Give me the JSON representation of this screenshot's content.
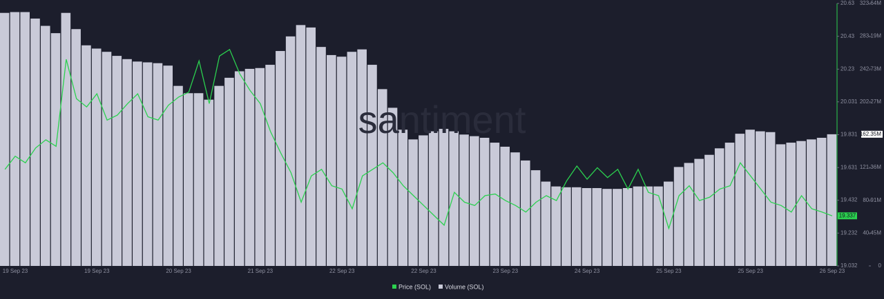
{
  "chart_data": {
    "type": "bar-line",
    "watermark": "santiment",
    "categories": [
      null,
      "19 Sep 23",
      null,
      null,
      null,
      null,
      null,
      null,
      null,
      "19 Sep 23",
      null,
      null,
      null,
      null,
      null,
      null,
      null,
      "20 Sep 23",
      null,
      null,
      null,
      null,
      null,
      null,
      null,
      "21 Sep 23",
      null,
      null,
      null,
      null,
      null,
      null,
      null,
      "22 Sep 23",
      null,
      null,
      null,
      null,
      null,
      null,
      null,
      "22 Sep 23",
      null,
      null,
      null,
      null,
      null,
      null,
      null,
      "23 Sep 23",
      null,
      null,
      null,
      null,
      null,
      null,
      null,
      "24 Sep 23",
      null,
      null,
      null,
      null,
      null,
      null,
      null,
      "25 Sep 23",
      null,
      null,
      null,
      null,
      null,
      null,
      null,
      "25 Sep 23",
      null,
      null,
      null,
      null,
      null,
      null,
      null,
      "26 Sep 23"
    ],
    "series": [
      {
        "name": "Price (SOL)",
        "color": "#2bd14f",
        "type": "line",
        "values": [
          19.62,
          19.7,
          19.66,
          19.75,
          19.8,
          19.76,
          20.29,
          20.05,
          20.0,
          20.08,
          19.92,
          19.95,
          20.02,
          20.08,
          19.94,
          19.92,
          20.01,
          20.06,
          20.09,
          20.28,
          20.02,
          20.31,
          20.35,
          20.2,
          20.1,
          20.02,
          19.85,
          19.72,
          19.6,
          19.42,
          19.58,
          19.62,
          19.52,
          19.5,
          19.38,
          19.58,
          19.62,
          19.66,
          19.6,
          19.52,
          19.46,
          19.4,
          19.34,
          19.28,
          19.48,
          19.42,
          19.4,
          19.46,
          19.47,
          19.43,
          19.4,
          19.36,
          19.42,
          19.46,
          19.43,
          19.55,
          19.64,
          19.56,
          19.63,
          19.57,
          19.62,
          19.5,
          19.62,
          19.48,
          19.46,
          19.26,
          19.46,
          19.52,
          19.43,
          19.45,
          19.5,
          19.52,
          19.66,
          19.58,
          19.5,
          19.42,
          19.4,
          19.36,
          19.46,
          19.38,
          19.36,
          19.337
        ]
      },
      {
        "name": "Volume (SOL)",
        "color": "#c9cad8",
        "type": "bar",
        "axis": "y2",
        "values": [
          312000000,
          313000000,
          313000000,
          305000000,
          296000000,
          287000000,
          312000000,
          292000000,
          272000000,
          268000000,
          264000000,
          259000000,
          255000000,
          252000000,
          251000000,
          250000000,
          247000000,
          222000000,
          213000000,
          213000000,
          205000000,
          222000000,
          232000000,
          240000000,
          243000000,
          244000000,
          248000000,
          265000000,
          283000000,
          297000000,
          294000000,
          270000000,
          260000000,
          258000000,
          264000000,
          267000000,
          248000000,
          218000000,
          195000000,
          168000000,
          156000000,
          161000000,
          166000000,
          169000000,
          166000000,
          162000000,
          160000000,
          158000000,
          152000000,
          147000000,
          140000000,
          130000000,
          118000000,
          104000000,
          98000000,
          97000000,
          97000000,
          96000000,
          96000000,
          95000000,
          95000000,
          96000000,
          98000000,
          98000000,
          98000000,
          104000000,
          122000000,
          127000000,
          132000000,
          137000000,
          145000000,
          152000000,
          163000000,
          168000000,
          166000000,
          165000000,
          150000000,
          152000000,
          154000000,
          156000000,
          158000000,
          162350000
        ],
        "value_labels": [
          null,
          null,
          null,
          null,
          null,
          null,
          null,
          null,
          null,
          null,
          null,
          null,
          null,
          null,
          null,
          null,
          null,
          null,
          null,
          null,
          null,
          null,
          null,
          null,
          null,
          null,
          null,
          null,
          null,
          null,
          null,
          null,
          null,
          null,
          null,
          null,
          null,
          null,
          null,
          null,
          null,
          null,
          null,
          null,
          null,
          null,
          null,
          null,
          null,
          null,
          null,
          null,
          null,
          null,
          null,
          null,
          null,
          null,
          null,
          null,
          null,
          null,
          null,
          null,
          null,
          null,
          null,
          null,
          null,
          null,
          null,
          null,
          null,
          null,
          null,
          null,
          null,
          null,
          null,
          null,
          null,
          "162.35M"
        ]
      }
    ],
    "ylim": [
      19.032,
      20.63
    ],
    "yticks": [
      19.032,
      19.232,
      19.432,
      19.631,
      19.831,
      20.031,
      20.23,
      20.43,
      20.63
    ],
    "y2lim": [
      0,
      323640000
    ],
    "y2ticks": [
      0,
      {
        "value": 40450000,
        "label": "40.45M"
      },
      {
        "value": 80910000,
        "label": "80.91M"
      },
      {
        "value": 121360000,
        "label": "121.36M"
      },
      {
        "value": 202270000,
        "label": "202.27M"
      },
      {
        "value": 242730000,
        "label": "242.73M"
      },
      {
        "value": 283190000,
        "label": "283.19M"
      },
      {
        "value": 323640000,
        "label": "323.64M"
      }
    ],
    "legend": "bottom"
  }
}
